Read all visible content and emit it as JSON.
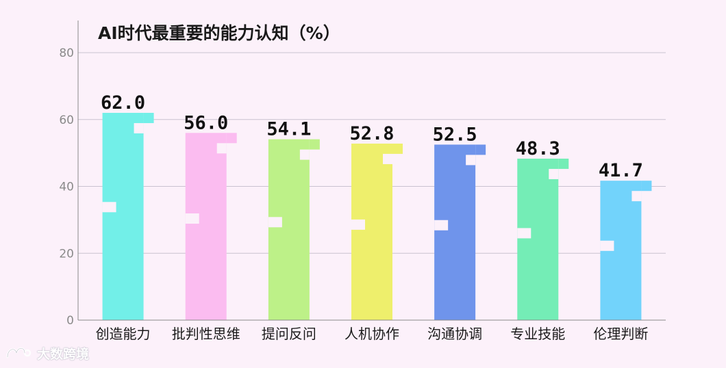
{
  "chart_data": {
    "type": "bar",
    "title": "AI时代最重要的能力认知（%）",
    "categories": [
      "创造能力",
      "批判性思维",
      "提问反问",
      "人机协作",
      "沟通协调",
      "专业技能",
      "伦理判断"
    ],
    "values": [
      62.0,
      56.0,
      54.1,
      52.8,
      52.5,
      48.3,
      41.7
    ],
    "value_labels": [
      "62.0",
      "56.0",
      "54.1",
      "52.8",
      "52.5",
      "48.3",
      "41.7"
    ],
    "colors": [
      "#72efe8",
      "#fbbcf0",
      "#bdf188",
      "#eeef6c",
      "#6f94eb",
      "#74edb6",
      "#72d3fb"
    ],
    "ylim": [
      0,
      80
    ],
    "yticks": [
      0,
      20,
      40,
      60,
      80
    ],
    "grid": true,
    "xlabel": "",
    "ylabel": ""
  },
  "watermark": {
    "text": "大数跨境"
  }
}
